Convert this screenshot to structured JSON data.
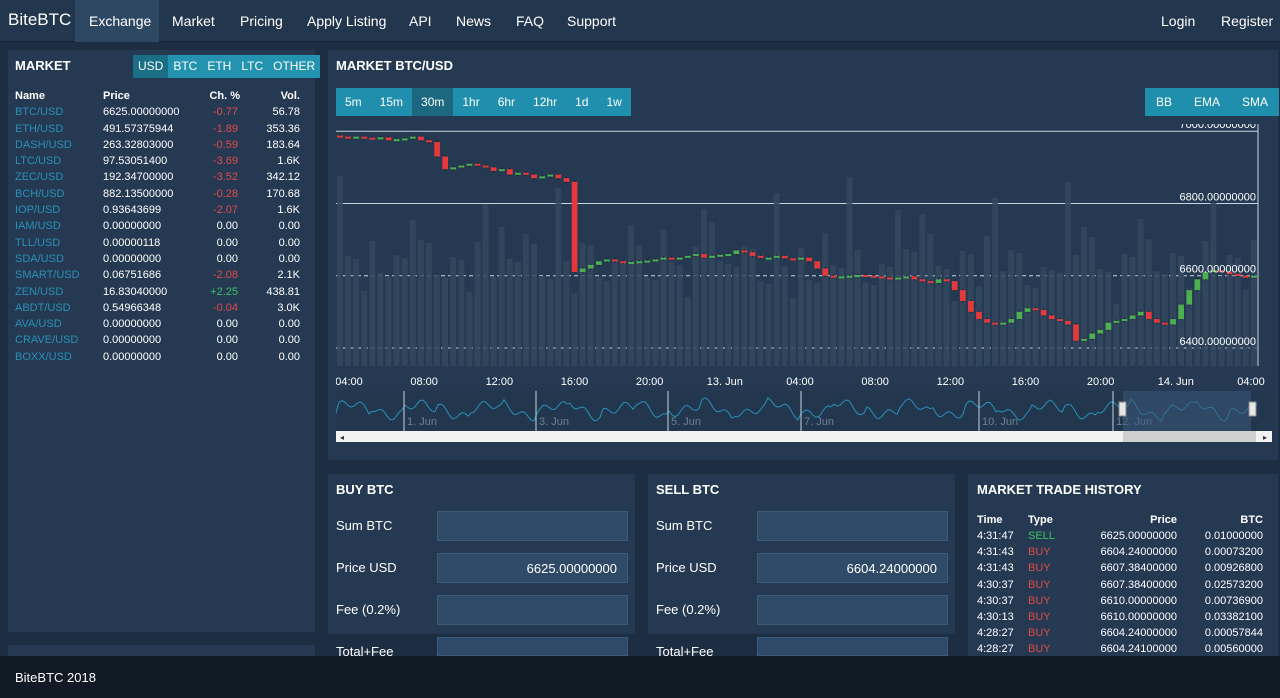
{
  "nav": {
    "brand": "BiteBTC",
    "items": [
      "Exchange",
      "Market",
      "Pricing",
      "Apply Listing",
      "API",
      "News",
      "FAQ",
      "Support"
    ],
    "login": "Login",
    "register": "Register"
  },
  "market": {
    "title": "MARKET",
    "tabs": [
      "USD",
      "BTC",
      "ETH",
      "LTC",
      "OTHER"
    ],
    "headers": {
      "name": "Name",
      "price": "Price",
      "ch": "Ch. %",
      "vol": "Vol."
    },
    "rows": [
      {
        "name": "BTC/USD",
        "price": "6625.00000000",
        "ch": "-0.77",
        "vol": "56.78"
      },
      {
        "name": "ETH/USD",
        "price": "491.57375944",
        "ch": "-1.89",
        "vol": "353.36"
      },
      {
        "name": "DASH/USD",
        "price": "263.32803000",
        "ch": "-0.59",
        "vol": "183.64"
      },
      {
        "name": "LTC/USD",
        "price": "97.53051400",
        "ch": "-3.69",
        "vol": "1.6K"
      },
      {
        "name": "ZEC/USD",
        "price": "192.34700000",
        "ch": "-3.52",
        "vol": "342.12"
      },
      {
        "name": "BCH/USD",
        "price": "882.13500000",
        "ch": "-0.28",
        "vol": "170.68"
      },
      {
        "name": "IOP/USD",
        "price": "0.93643699",
        "ch": "-2.07",
        "vol": "1.6K"
      },
      {
        "name": "IAM/USD",
        "price": "0.00000000",
        "ch": "0.00",
        "vol": "0.00"
      },
      {
        "name": "TLL/USD",
        "price": "0.00000118",
        "ch": "0.00",
        "vol": "0.00"
      },
      {
        "name": "SDA/USD",
        "price": "0.00000000",
        "ch": "0.00",
        "vol": "0.00"
      },
      {
        "name": "SMART/USD",
        "price": "0.06751686",
        "ch": "-2.08",
        "vol": "2.1K"
      },
      {
        "name": "ZEN/USD",
        "price": "16.83040000",
        "ch": "+2.25",
        "vol": "438.81"
      },
      {
        "name": "ABDT/USD",
        "price": "0.54966348",
        "ch": "-0.04",
        "vol": "3.0K"
      },
      {
        "name": "AVA/USD",
        "price": "0.00000000",
        "ch": "0.00",
        "vol": "0.00"
      },
      {
        "name": "CRAVE/USD",
        "price": "0.00000000",
        "ch": "0.00",
        "vol": "0.00"
      },
      {
        "name": "BOXX/USD",
        "price": "0.00000000",
        "ch": "0.00",
        "vol": "0.00"
      }
    ]
  },
  "chart": {
    "title": "MARKET BTC/USD",
    "intervals": [
      "5m",
      "15m",
      "30m",
      "1hr",
      "6hr",
      "12hr",
      "1d",
      "1w"
    ],
    "active_interval": "30m",
    "indicators": [
      "BB",
      "EMA",
      "SMA"
    ],
    "price_labels": [
      "7000.00000000",
      "6800.00000000",
      "6600.00000000",
      "6400.00000000"
    ],
    "time_labels": [
      "04:00",
      "08:00",
      "12:00",
      "16:00",
      "20:00",
      "13. Jun",
      "04:00",
      "08:00",
      "12:00",
      "16:00",
      "20:00",
      "14. Jun",
      "04:00"
    ],
    "nav_labels": [
      "1. Jun",
      "3. Jun",
      "5. Jun",
      "7. Jun",
      "10. Jun",
      "12. Jun"
    ],
    "colors": {
      "up": "#4caf50",
      "down": "#e5393b",
      "volume": "#34495f"
    }
  },
  "chart_data": {
    "type": "candlestick",
    "title": "MARKET BTC/USD",
    "ylim": [
      6350,
      7020
    ],
    "closes": [
      6985,
      6980,
      6985,
      6982,
      6980,
      6983,
      6975,
      6978,
      6980,
      6985,
      6975,
      6970,
      6930,
      6895,
      6900,
      6905,
      6910,
      6905,
      6900,
      6890,
      6895,
      6880,
      6885,
      6880,
      6870,
      6875,
      6880,
      6870,
      6860,
      6610,
      6620,
      6630,
      6640,
      6645,
      6640,
      6635,
      6638,
      6640,
      6642,
      6645,
      6650,
      6648,
      6650,
      6655,
      6660,
      6650,
      6655,
      6658,
      6660,
      6670,
      6665,
      6655,
      6650,
      6650,
      6655,
      6648,
      6645,
      6650,
      6640,
      6620,
      6600,
      6595,
      6598,
      6600,
      6602,
      6600,
      6598,
      6595,
      6590,
      6595,
      6598,
      6590,
      6585,
      6580,
      6590,
      6585,
      6560,
      6530,
      6500,
      6480,
      6470,
      6465,
      6470,
      6480,
      6500,
      6510,
      6505,
      6490,
      6480,
      6475,
      6465,
      6420,
      6425,
      6440,
      6450,
      6470,
      6475,
      6480,
      6490,
      6500,
      6480,
      6470,
      6465,
      6480,
      6520,
      6560,
      6590,
      6610,
      6615,
      6610,
      6605,
      6600,
      6595,
      6600
    ]
  },
  "buy": {
    "title": "BUY BTC",
    "sum_label": "Sum BTC",
    "sum_value": "",
    "price_label": "Price USD",
    "price_value": "6625.00000000",
    "fee_label": "Fee (0.2%)",
    "fee_value": "",
    "total_label": "Total+Fee"
  },
  "sell": {
    "title": "SELL BTC",
    "sum_label": "Sum BTC",
    "sum_value": "",
    "price_label": "Price USD",
    "price_value": "6604.24000000",
    "fee_label": "Fee (0.2%)",
    "fee_value": "",
    "total_label": "Total+Fee"
  },
  "history": {
    "title": "MARKET TRADE HISTORY",
    "headers": {
      "time": "Time",
      "type": "Type",
      "price": "Price",
      "btc": "BTC"
    },
    "rows": [
      {
        "time": "4:31:47",
        "type": "SELL",
        "price": "6625.00000000",
        "btc": "0.01000000"
      },
      {
        "time": "4:31:43",
        "type": "BUY",
        "price": "6604.24000000",
        "btc": "0.00073200"
      },
      {
        "time": "4:31:43",
        "type": "BUY",
        "price": "6607.38400000",
        "btc": "0.00926800"
      },
      {
        "time": "4:30:37",
        "type": "BUY",
        "price": "6607.38400000",
        "btc": "0.02573200"
      },
      {
        "time": "4:30:37",
        "type": "BUY",
        "price": "6610.00000000",
        "btc": "0.00736900"
      },
      {
        "time": "4:30:13",
        "type": "BUY",
        "price": "6610.00000000",
        "btc": "0.03382100"
      },
      {
        "time": "4:28:27",
        "type": "BUY",
        "price": "6604.24000000",
        "btc": "0.00057844"
      },
      {
        "time": "4:28:27",
        "type": "BUY",
        "price": "6604.24100000",
        "btc": "0.00560000"
      }
    ]
  },
  "footer": {
    "text": "BiteBTC 2018"
  }
}
